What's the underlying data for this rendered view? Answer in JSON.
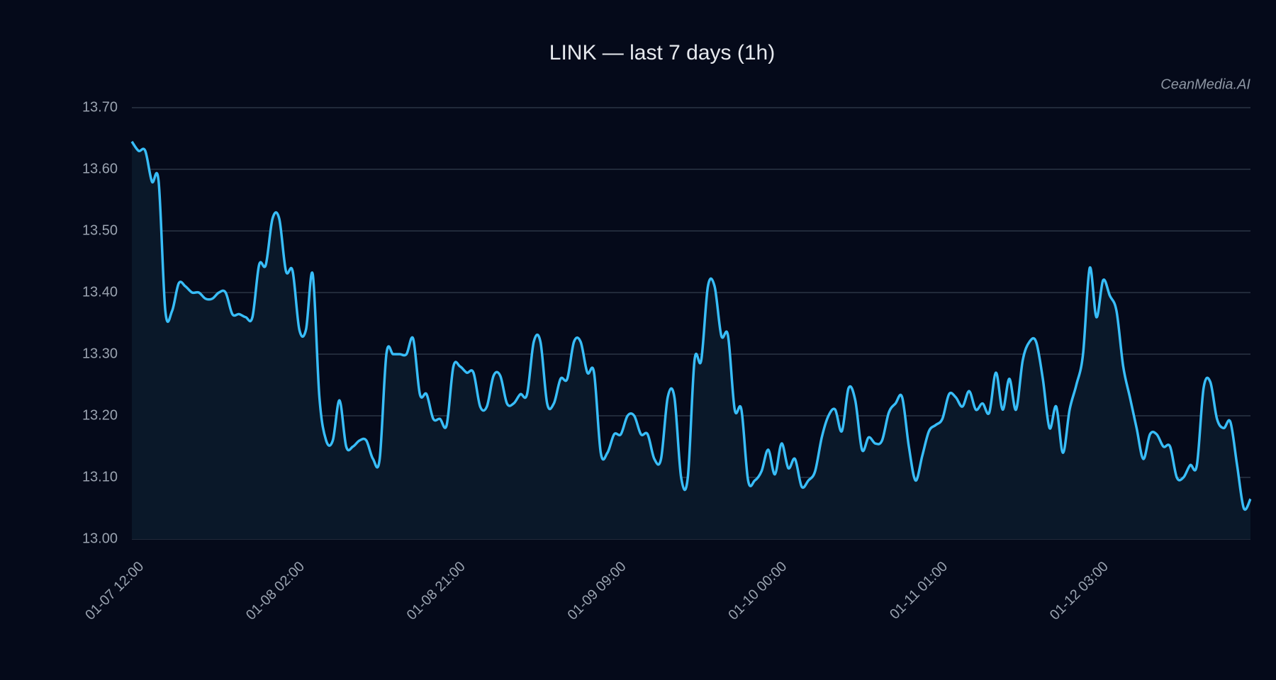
{
  "chart_data": {
    "type": "line",
    "title": "LINK — last 7 days (1h)",
    "watermark": "CeanMedia.AI",
    "categories": [
      "01-07 12:00",
      null,
      null,
      null,
      null,
      null,
      null,
      null,
      null,
      null,
      null,
      null,
      null,
      null,
      null,
      null,
      null,
      null,
      null,
      null,
      null,
      null,
      null,
      null,
      "01-08 02:00",
      null,
      null,
      null,
      null,
      null,
      null,
      null,
      null,
      null,
      null,
      null,
      null,
      null,
      null,
      null,
      null,
      null,
      null,
      null,
      null,
      null,
      null,
      null,
      "01-08 21:00",
      null,
      null,
      null,
      null,
      null,
      null,
      null,
      null,
      null,
      null,
      null,
      null,
      null,
      null,
      null,
      null,
      null,
      null,
      null,
      null,
      null,
      null,
      null,
      "01-09 09:00",
      null,
      null,
      null,
      null,
      null,
      null,
      null,
      null,
      null,
      null,
      null,
      null,
      null,
      null,
      null,
      null,
      null,
      null,
      null,
      null,
      null,
      null,
      null,
      "01-10 00:00",
      null,
      null,
      null,
      null,
      null,
      null,
      null,
      null,
      null,
      null,
      null,
      null,
      null,
      null,
      null,
      null,
      null,
      null,
      null,
      null,
      null,
      null,
      null,
      "01-11 01:00",
      null,
      null,
      null,
      null,
      null,
      null,
      null,
      null,
      null,
      null,
      null,
      null,
      null,
      null,
      null,
      null,
      null,
      null,
      null,
      null,
      null,
      null,
      null,
      "01-12 03:00",
      null,
      null,
      null,
      null,
      null,
      null,
      null,
      null,
      null,
      null,
      null,
      null,
      null,
      null,
      null,
      null,
      null,
      null,
      null,
      null,
      null,
      null,
      null
    ],
    "series": [
      {
        "color": "#38bdf8",
        "fill": "#0a1829",
        "values": [
          13.645,
          13.63,
          13.63,
          13.58,
          13.58,
          13.37,
          13.37,
          13.415,
          13.41,
          13.4,
          13.4,
          13.39,
          13.39,
          13.4,
          13.4,
          13.365,
          13.365,
          13.36,
          13.36,
          13.445,
          13.445,
          13.52,
          13.52,
          13.435,
          13.435,
          13.34,
          13.34,
          13.43,
          13.23,
          13.16,
          13.16,
          13.225,
          13.15,
          13.15,
          13.16,
          13.16,
          13.13,
          13.13,
          13.3,
          13.3,
          13.3,
          13.3,
          13.325,
          13.235,
          13.235,
          13.195,
          13.195,
          13.185,
          13.28,
          13.28,
          13.27,
          13.27,
          13.215,
          13.215,
          13.265,
          13.265,
          13.22,
          13.22,
          13.235,
          13.235,
          13.32,
          13.32,
          13.22,
          13.22,
          13.26,
          13.26,
          13.32,
          13.32,
          13.27,
          13.27,
          13.14,
          13.14,
          13.17,
          13.17,
          13.2,
          13.2,
          13.17,
          13.17,
          13.13,
          13.13,
          13.23,
          13.23,
          13.1,
          13.1,
          13.29,
          13.29,
          13.41,
          13.41,
          13.33,
          13.33,
          13.21,
          13.21,
          13.095,
          13.095,
          13.11,
          13.145,
          13.105,
          13.155,
          13.115,
          13.13,
          13.085,
          13.095,
          13.11,
          13.165,
          13.2,
          13.21,
          13.175,
          13.245,
          13.225,
          13.145,
          13.165,
          13.155,
          13.16,
          13.205,
          13.22,
          13.23,
          13.15,
          13.095,
          13.135,
          13.175,
          13.185,
          13.195,
          13.235,
          13.23,
          13.215,
          13.24,
          13.21,
          13.22,
          13.205,
          13.27,
          13.21,
          13.26,
          13.21,
          13.29,
          13.32,
          13.32,
          13.26,
          13.18,
          13.215,
          13.14,
          13.21,
          13.25,
          13.3,
          13.44,
          13.36,
          13.42,
          13.395,
          13.37,
          13.28,
          13.23,
          13.18,
          13.13,
          13.17,
          13.17,
          13.15,
          13.15,
          13.1,
          13.1,
          13.12,
          13.12,
          13.245,
          13.255,
          13.195,
          13.18,
          13.19,
          13.12,
          13.05,
          13.065
        ]
      }
    ],
    "ylim": [
      13.0,
      13.7
    ],
    "yticks": [
      {
        "value": 13.0,
        "label": "13.00"
      },
      {
        "value": 13.1,
        "label": "13.10"
      },
      {
        "value": 13.2,
        "label": "13.20"
      },
      {
        "value": 13.3,
        "label": "13.30"
      },
      {
        "value": 13.4,
        "label": "13.40"
      },
      {
        "value": 13.5,
        "label": "13.50"
      },
      {
        "value": 13.6,
        "label": "13.60"
      },
      {
        "value": 13.7,
        "label": "13.70"
      }
    ],
    "grid": true
  }
}
